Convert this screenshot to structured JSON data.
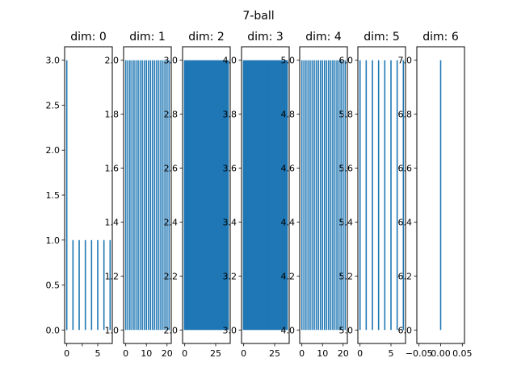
{
  "chart_data": {
    "type": "barcode",
    "title": "7-ball",
    "bar_color": "#1f77b4",
    "panels": [
      {
        "title": "dim: 0",
        "xlim": [
          -0.35,
          7.35
        ],
        "ylim": [
          -0.15,
          3.15
        ],
        "xticks": [
          0,
          2.5,
          5
        ],
        "xticklabels": [
          "0",
          "",
          "5"
        ],
        "yticks": [
          0,
          0.5,
          1,
          1.5,
          2,
          2.5,
          3
        ],
        "yticklabels": [
          "0.0",
          "0.5",
          "1.0",
          "1.5",
          "2.0",
          "2.5",
          "3.0"
        ],
        "bars": [
          {
            "x": 0,
            "y0": 0,
            "y1": 3
          },
          {
            "x": 1,
            "y0": 0,
            "y1": 1
          },
          {
            "x": 2,
            "y0": 0,
            "y1": 1
          },
          {
            "x": 3,
            "y0": 0,
            "y1": 1
          },
          {
            "x": 4,
            "y0": 0,
            "y1": 1
          },
          {
            "x": 5,
            "y0": 0,
            "y1": 1
          },
          {
            "x": 6,
            "y0": 0,
            "y1": 1
          },
          {
            "x": 7,
            "y0": 0,
            "y1": 1
          }
        ]
      },
      {
        "title": "dim: 1",
        "xlim": [
          -1.05,
          22.05
        ],
        "ylim": [
          0.95,
          2.05
        ],
        "xticks": [
          0,
          10,
          20
        ],
        "xticklabels": [
          "0",
          "10",
          "20"
        ],
        "yticks": [
          1,
          1.2,
          1.4,
          1.6,
          1.8,
          2
        ],
        "yticklabels": [
          "1.0",
          "1.2",
          "1.4",
          "1.6",
          "1.8",
          "2.0"
        ],
        "bars": [
          {
            "x": 0,
            "y0": 1,
            "y1": 2
          },
          {
            "x": 1,
            "y0": 1,
            "y1": 2
          },
          {
            "x": 2,
            "y0": 1,
            "y1": 2
          },
          {
            "x": 3,
            "y0": 1,
            "y1": 2
          },
          {
            "x": 4,
            "y0": 1,
            "y1": 2
          },
          {
            "x": 5,
            "y0": 1,
            "y1": 2
          },
          {
            "x": 6,
            "y0": 1,
            "y1": 2
          },
          {
            "x": 7,
            "y0": 1,
            "y1": 2
          },
          {
            "x": 8,
            "y0": 1,
            "y1": 2
          },
          {
            "x": 9,
            "y0": 1,
            "y1": 2
          },
          {
            "x": 10,
            "y0": 1,
            "y1": 2
          },
          {
            "x": 11,
            "y0": 1,
            "y1": 2
          },
          {
            "x": 12,
            "y0": 1,
            "y1": 2
          },
          {
            "x": 13,
            "y0": 1,
            "y1": 2
          },
          {
            "x": 14,
            "y0": 1,
            "y1": 2
          },
          {
            "x": 15,
            "y0": 1,
            "y1": 2
          },
          {
            "x": 16,
            "y0": 1,
            "y1": 2
          },
          {
            "x": 17,
            "y0": 1,
            "y1": 2
          },
          {
            "x": 18,
            "y0": 1,
            "y1": 2
          },
          {
            "x": 19,
            "y0": 1,
            "y1": 2
          },
          {
            "x": 20,
            "y0": 1,
            "y1": 2
          },
          {
            "x": 21,
            "y0": 1,
            "y1": 2
          }
        ]
      },
      {
        "title": "dim: 2",
        "xlim": [
          -1.75,
          36.75
        ],
        "ylim": [
          1.95,
          3.05
        ],
        "xticks": [
          0,
          25
        ],
        "xticklabels": [
          "0",
          "25"
        ],
        "yticks": [
          2,
          2.2,
          2.4,
          2.6,
          2.8,
          3
        ],
        "yticklabels": [
          "2.0",
          "2.2",
          "2.4",
          "2.6",
          "2.8",
          "3.0"
        ],
        "bars": [
          {
            "x": 0,
            "y0": 2,
            "y1": 3
          },
          {
            "x": 1,
            "y0": 2,
            "y1": 3
          },
          {
            "x": 2,
            "y0": 2,
            "y1": 3
          },
          {
            "x": 3,
            "y0": 2,
            "y1": 3
          },
          {
            "x": 4,
            "y0": 2,
            "y1": 3
          },
          {
            "x": 5,
            "y0": 2,
            "y1": 3
          },
          {
            "x": 6,
            "y0": 2,
            "y1": 3
          },
          {
            "x": 7,
            "y0": 2,
            "y1": 3
          },
          {
            "x": 8,
            "y0": 2,
            "y1": 3
          },
          {
            "x": 9,
            "y0": 2,
            "y1": 3
          },
          {
            "x": 10,
            "y0": 2,
            "y1": 3
          },
          {
            "x": 11,
            "y0": 2,
            "y1": 3
          },
          {
            "x": 12,
            "y0": 2,
            "y1": 3
          },
          {
            "x": 13,
            "y0": 2,
            "y1": 3
          },
          {
            "x": 14,
            "y0": 2,
            "y1": 3
          },
          {
            "x": 15,
            "y0": 2,
            "y1": 3
          },
          {
            "x": 16,
            "y0": 2,
            "y1": 3
          },
          {
            "x": 17,
            "y0": 2,
            "y1": 3
          },
          {
            "x": 18,
            "y0": 2,
            "y1": 3
          },
          {
            "x": 19,
            "y0": 2,
            "y1": 3
          },
          {
            "x": 20,
            "y0": 2,
            "y1": 3
          },
          {
            "x": 21,
            "y0": 2,
            "y1": 3
          },
          {
            "x": 22,
            "y0": 2,
            "y1": 3
          },
          {
            "x": 23,
            "y0": 2,
            "y1": 3
          },
          {
            "x": 24,
            "y0": 2,
            "y1": 3
          },
          {
            "x": 25,
            "y0": 2,
            "y1": 3
          },
          {
            "x": 26,
            "y0": 2,
            "y1": 3
          },
          {
            "x": 27,
            "y0": 2,
            "y1": 3
          },
          {
            "x": 28,
            "y0": 2,
            "y1": 3
          },
          {
            "x": 29,
            "y0": 2,
            "y1": 3
          },
          {
            "x": 30,
            "y0": 2,
            "y1": 3
          },
          {
            "x": 31,
            "y0": 2,
            "y1": 3
          },
          {
            "x": 32,
            "y0": 2,
            "y1": 3
          },
          {
            "x": 33,
            "y0": 2,
            "y1": 3
          },
          {
            "x": 34,
            "y0": 2,
            "y1": 3
          },
          {
            "x": 35,
            "y0": 2,
            "y1": 3
          }
        ]
      },
      {
        "title": "dim: 3",
        "xlim": [
          -1.75,
          36.75
        ],
        "ylim": [
          2.95,
          4.05
        ],
        "xticks": [
          0,
          25
        ],
        "xticklabels": [
          "0",
          "25"
        ],
        "yticks": [
          3,
          3.2,
          3.4,
          3.6,
          3.8,
          4
        ],
        "yticklabels": [
          "3.0",
          "3.2",
          "3.4",
          "3.6",
          "3.8",
          "4.0"
        ],
        "bars": [
          {
            "x": 0,
            "y0": 3,
            "y1": 4
          },
          {
            "x": 1,
            "y0": 3,
            "y1": 4
          },
          {
            "x": 2,
            "y0": 3,
            "y1": 4
          },
          {
            "x": 3,
            "y0": 3,
            "y1": 4
          },
          {
            "x": 4,
            "y0": 3,
            "y1": 4
          },
          {
            "x": 5,
            "y0": 3,
            "y1": 4
          },
          {
            "x": 6,
            "y0": 3,
            "y1": 4
          },
          {
            "x": 7,
            "y0": 3,
            "y1": 4
          },
          {
            "x": 8,
            "y0": 3,
            "y1": 4
          },
          {
            "x": 9,
            "y0": 3,
            "y1": 4
          },
          {
            "x": 10,
            "y0": 3,
            "y1": 4
          },
          {
            "x": 11,
            "y0": 3,
            "y1": 4
          },
          {
            "x": 12,
            "y0": 3,
            "y1": 4
          },
          {
            "x": 13,
            "y0": 3,
            "y1": 4
          },
          {
            "x": 14,
            "y0": 3,
            "y1": 4
          },
          {
            "x": 15,
            "y0": 3,
            "y1": 4
          },
          {
            "x": 16,
            "y0": 3,
            "y1": 4
          },
          {
            "x": 17,
            "y0": 3,
            "y1": 4
          },
          {
            "x": 18,
            "y0": 3,
            "y1": 4
          },
          {
            "x": 19,
            "y0": 3,
            "y1": 4
          },
          {
            "x": 20,
            "y0": 3,
            "y1": 4
          },
          {
            "x": 21,
            "y0": 3,
            "y1": 4
          },
          {
            "x": 22,
            "y0": 3,
            "y1": 4
          },
          {
            "x": 23,
            "y0": 3,
            "y1": 4
          },
          {
            "x": 24,
            "y0": 3,
            "y1": 4
          },
          {
            "x": 25,
            "y0": 3,
            "y1": 4
          },
          {
            "x": 26,
            "y0": 3,
            "y1": 4
          },
          {
            "x": 27,
            "y0": 3,
            "y1": 4
          },
          {
            "x": 28,
            "y0": 3,
            "y1": 4
          },
          {
            "x": 29,
            "y0": 3,
            "y1": 4
          },
          {
            "x": 30,
            "y0": 3,
            "y1": 4
          },
          {
            "x": 31,
            "y0": 3,
            "y1": 4
          },
          {
            "x": 32,
            "y0": 3,
            "y1": 4
          },
          {
            "x": 33,
            "y0": 3,
            "y1": 4
          },
          {
            "x": 34,
            "y0": 3,
            "y1": 4
          },
          {
            "x": 35,
            "y0": 3,
            "y1": 4
          }
        ]
      },
      {
        "title": "dim: 4",
        "xlim": [
          -1.05,
          22.05
        ],
        "ylim": [
          3.95,
          5.05
        ],
        "xticks": [
          0,
          10,
          20
        ],
        "xticklabels": [
          "0",
          "10",
          "20"
        ],
        "yticks": [
          4,
          4.2,
          4.4,
          4.6,
          4.8,
          5
        ],
        "yticklabels": [
          "4.0",
          "4.2",
          "4.4",
          "4.6",
          "4.8",
          "5.0"
        ],
        "bars": [
          {
            "x": 0,
            "y0": 4,
            "y1": 5
          },
          {
            "x": 1,
            "y0": 4,
            "y1": 5
          },
          {
            "x": 2,
            "y0": 4,
            "y1": 5
          },
          {
            "x": 3,
            "y0": 4,
            "y1": 5
          },
          {
            "x": 4,
            "y0": 4,
            "y1": 5
          },
          {
            "x": 5,
            "y0": 4,
            "y1": 5
          },
          {
            "x": 6,
            "y0": 4,
            "y1": 5
          },
          {
            "x": 7,
            "y0": 4,
            "y1": 5
          },
          {
            "x": 8,
            "y0": 4,
            "y1": 5
          },
          {
            "x": 9,
            "y0": 4,
            "y1": 5
          },
          {
            "x": 10,
            "y0": 4,
            "y1": 5
          },
          {
            "x": 11,
            "y0": 4,
            "y1": 5
          },
          {
            "x": 12,
            "y0": 4,
            "y1": 5
          },
          {
            "x": 13,
            "y0": 4,
            "y1": 5
          },
          {
            "x": 14,
            "y0": 4,
            "y1": 5
          },
          {
            "x": 15,
            "y0": 4,
            "y1": 5
          },
          {
            "x": 16,
            "y0": 4,
            "y1": 5
          },
          {
            "x": 17,
            "y0": 4,
            "y1": 5
          },
          {
            "x": 18,
            "y0": 4,
            "y1": 5
          },
          {
            "x": 19,
            "y0": 4,
            "y1": 5
          },
          {
            "x": 20,
            "y0": 4,
            "y1": 5
          },
          {
            "x": 21,
            "y0": 4,
            "y1": 5
          }
        ]
      },
      {
        "title": "dim: 5",
        "xlim": [
          -0.35,
          7.35
        ],
        "ylim": [
          4.95,
          6.05
        ],
        "xticks": [
          0,
          5
        ],
        "xticklabels": [
          "0",
          "5"
        ],
        "yticks": [
          5,
          5.2,
          5.4,
          5.6,
          5.8,
          6
        ],
        "yticklabels": [
          "5.0",
          "5.2",
          "5.4",
          "5.6",
          "5.8",
          "6.0"
        ],
        "bars": [
          {
            "x": 0,
            "y0": 5,
            "y1": 6
          },
          {
            "x": 1,
            "y0": 5,
            "y1": 6
          },
          {
            "x": 2,
            "y0": 5,
            "y1": 6
          },
          {
            "x": 3,
            "y0": 5,
            "y1": 6
          },
          {
            "x": 4,
            "y0": 5,
            "y1": 6
          },
          {
            "x": 5,
            "y0": 5,
            "y1": 6
          },
          {
            "x": 6,
            "y0": 5,
            "y1": 6
          },
          {
            "x": 7,
            "y0": 5,
            "y1": 6
          }
        ]
      },
      {
        "title": "dim: 6",
        "xlim": [
          -0.055,
          0.055
        ],
        "ylim": [
          5.95,
          7.05
        ],
        "xticks": [
          -0.05,
          0,
          0.05
        ],
        "xticklabels": [
          "−0.05",
          "0.00",
          "0.05"
        ],
        "yticks": [
          6,
          6.2,
          6.4,
          6.6,
          6.8,
          7
        ],
        "yticklabels": [
          "6.0",
          "6.2",
          "6.4",
          "6.6",
          "6.8",
          "7.0"
        ],
        "bars": [
          {
            "x": 0,
            "y0": 6,
            "y1": 7
          }
        ]
      }
    ]
  }
}
